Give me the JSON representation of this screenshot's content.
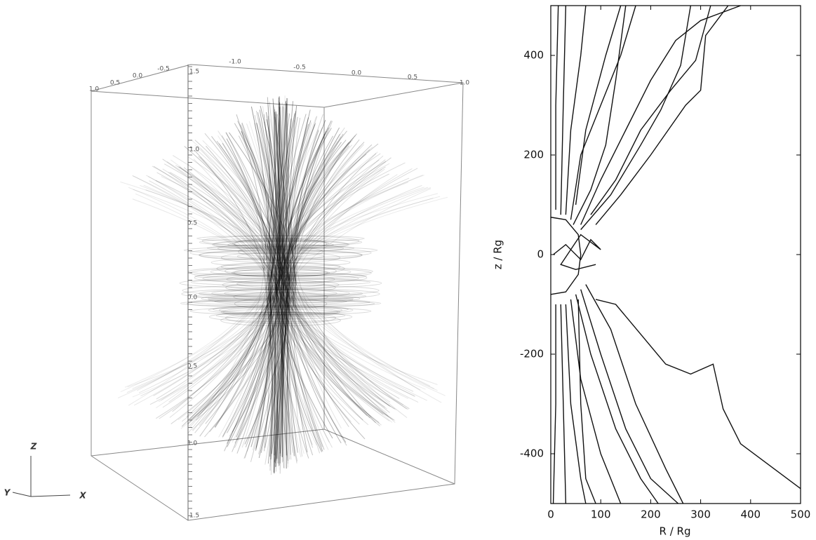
{
  "left_panel": {
    "ticks_front": [
      "1.0",
      "0.5",
      "0.0",
      "-0.5"
    ],
    "ticks_back": [
      "-1.0",
      "-0.5",
      "0.0",
      "0.5",
      "1.0"
    ],
    "ticks_vertical": [
      "1.5",
      "1.0",
      "0.5",
      "0.0",
      "0.5",
      "1.0",
      "1.5"
    ],
    "axes": [
      "Z",
      "Y",
      "X"
    ]
  },
  "chart_data": {
    "type": "line",
    "color": "#111",
    "xlabel": "R / Rg",
    "ylabel": "z / Rg",
    "xlim": [
      0,
      500
    ],
    "ylim": [
      -500,
      500
    ],
    "xticks": [
      0,
      100,
      200,
      300,
      400,
      500
    ],
    "yticks": [
      -400,
      -200,
      0,
      200,
      400
    ],
    "series": [
      {
        "x": [
          90,
          130,
          180,
          230,
          280,
          325,
          345,
          380,
          500
        ],
        "y": [
          -90,
          -100,
          -160,
          -220,
          -240,
          -220,
          -310,
          -380,
          -470
        ]
      },
      {
        "x": [
          60,
          100,
          150,
          200,
          255
        ],
        "y": [
          -70,
          -200,
          -350,
          -450,
          -500
        ]
      },
      {
        "x": [
          50,
          80,
          130,
          180,
          215
        ],
        "y": [
          -80,
          -200,
          -350,
          -450,
          -500
        ]
      },
      {
        "x": [
          40,
          60,
          100,
          140
        ],
        "y": [
          -90,
          -250,
          -400,
          -500
        ]
      },
      {
        "x": [
          70,
          120,
          170,
          230,
          265
        ],
        "y": [
          -60,
          -150,
          -300,
          -430,
          -500
        ]
      },
      {
        "x": [
          30,
          40,
          60,
          70
        ],
        "y": [
          -100,
          -300,
          -450,
          -500
        ]
      },
      {
        "x": [
          20,
          25,
          30
        ],
        "y": [
          -100,
          -300,
          -500
        ]
      },
      {
        "x": [
          10,
          10,
          5
        ],
        "y": [
          -100,
          -300,
          -500
        ]
      },
      {
        "x": [
          55,
          60,
          70,
          90
        ],
        "y": [
          -90,
          -300,
          -450,
          -500
        ]
      },
      {
        "x": [
          60,
          100,
          150,
          200,
          250,
          300,
          380
        ],
        "y": [
          60,
          150,
          250,
          350,
          430,
          470,
          500
        ]
      },
      {
        "x": [
          40,
          60,
          100,
          140,
          170
        ],
        "y": [
          70,
          200,
          300,
          400,
          500
        ]
      },
      {
        "x": [
          80,
          130,
          180,
          240,
          290,
          320
        ],
        "y": [
          80,
          150,
          250,
          330,
          390,
          500
        ]
      },
      {
        "x": [
          30,
          40,
          60,
          70
        ],
        "y": [
          80,
          250,
          400,
          500
        ]
      },
      {
        "x": [
          50,
          70,
          110,
          140
        ],
        "y": [
          100,
          250,
          400,
          500
        ]
      },
      {
        "x": [
          20,
          25,
          30
        ],
        "y": [
          80,
          300,
          500
        ]
      },
      {
        "x": [
          10,
          10,
          15
        ],
        "y": [
          90,
          300,
          500
        ]
      },
      {
        "x": [
          90,
          140,
          200,
          270,
          300,
          310,
          355
        ],
        "y": [
          60,
          120,
          200,
          300,
          330,
          440,
          500
        ]
      },
      {
        "x": [
          60,
          120,
          180,
          220,
          260,
          280
        ],
        "y": [
          50,
          120,
          220,
          290,
          380,
          500
        ]
      },
      {
        "x": [
          45,
          80,
          110,
          130,
          150
        ],
        "y": [
          60,
          130,
          220,
          350,
          500
        ]
      },
      {
        "x": [
          5,
          30,
          60,
          80,
          100,
          60,
          20,
          50,
          90
        ],
        "y": [
          0,
          20,
          -10,
          30,
          10,
          40,
          -20,
          -30,
          -20
        ]
      },
      {
        "x": [
          0,
          30,
          55,
          60,
          55,
          30,
          0
        ],
        "y": [
          75,
          70,
          40,
          0,
          -40,
          -75,
          -80
        ]
      }
    ]
  }
}
